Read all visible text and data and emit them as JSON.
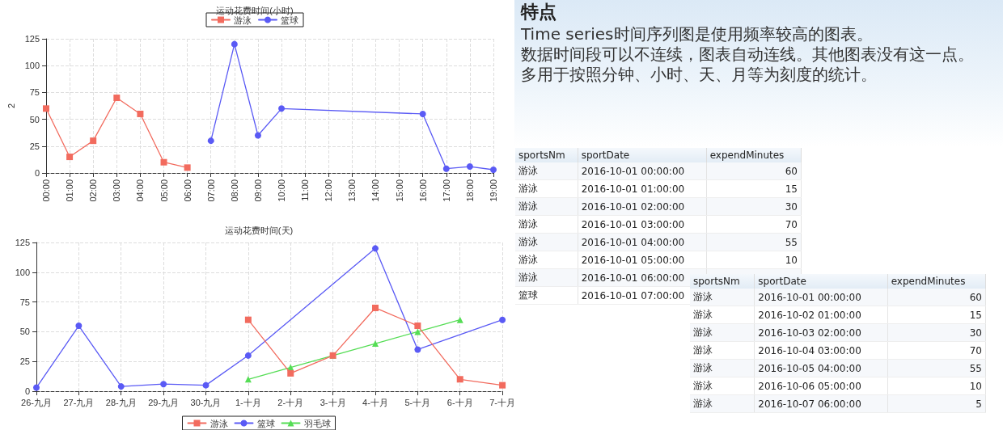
{
  "chart_data": [
    {
      "type": "line",
      "title": "运动花费时间(小时)",
      "ylabel": "2",
      "categories": [
        "00:00",
        "01:00",
        "02:00",
        "03:00",
        "04:00",
        "05:00",
        "06:00",
        "07:00",
        "08:00",
        "09:00",
        "10:00",
        "11:00",
        "12:00",
        "13:00",
        "14:00",
        "15:00",
        "16:00",
        "17:00",
        "18:00",
        "19:00"
      ],
      "ylim": [
        0,
        125
      ],
      "yticks": [
        0,
        25,
        50,
        75,
        100,
        125
      ],
      "grid": true,
      "legend": "top",
      "line_style": "solid",
      "series": [
        {
          "name": "游泳",
          "color": "#f26b5e",
          "marker": "square",
          "values": [
            60,
            15,
            30,
            70,
            55,
            10,
            5,
            null,
            null,
            null,
            null,
            null,
            null,
            null,
            null,
            null,
            null,
            null,
            null,
            null
          ]
        },
        {
          "name": "篮球",
          "color": "#5a5af5",
          "marker": "circle",
          "values": [
            null,
            null,
            null,
            null,
            null,
            null,
            null,
            30,
            120,
            35,
            60,
            null,
            null,
            null,
            null,
            null,
            55,
            4,
            6,
            3
          ]
        }
      ]
    },
    {
      "type": "line",
      "title": "运动花费时间(天)",
      "categories": [
        "26-九月",
        "27-九月",
        "28-九月",
        "29-九月",
        "30-九月",
        "1-十月",
        "2-十月",
        "3-十月",
        "4-十月",
        "5-十月",
        "6-十月",
        "7-十月"
      ],
      "ylim": [
        0,
        125
      ],
      "yticks": [
        0,
        25,
        50,
        75,
        100,
        125
      ],
      "grid": true,
      "legend": "bottom",
      "line_style": "solid",
      "series": [
        {
          "name": "游泳",
          "color": "#f26b5e",
          "marker": "square",
          "values": [
            null,
            null,
            null,
            null,
            null,
            60,
            15,
            30,
            70,
            55,
            10,
            5
          ]
        },
        {
          "name": "篮球",
          "color": "#5a5af5",
          "marker": "circle",
          "values": [
            3,
            55,
            4,
            6,
            5,
            30,
            null,
            null,
            120,
            35,
            null,
            60
          ]
        },
        {
          "name": "羽毛球",
          "color": "#55dd55",
          "marker": "triangle",
          "values": [
            null,
            null,
            null,
            null,
            null,
            10,
            20,
            30,
            40,
            50,
            60,
            null
          ]
        }
      ]
    },
    {
      "type": "other",
      "title": "特点",
      "annotations": [
        "Time series时间序列图是使用频率较高的图表。",
        "数据时间段可以不连续，图表自动连线。其他图表没有这一点。",
        "多用于按照分钟、小时、天、月等为刻度的统计。"
      ]
    },
    {
      "type": "other",
      "categories": [
        "sportsNm",
        "sportDate",
        "expendMinutes"
      ],
      "cells": [
        [
          "游泳",
          "2016-10-01 00:00:00",
          "60"
        ],
        [
          "游泳",
          "2016-10-01 01:00:00",
          "15"
        ],
        [
          "游泳",
          "2016-10-01 02:00:00",
          "30"
        ],
        [
          "游泳",
          "2016-10-01 03:00:00",
          "70"
        ],
        [
          "游泳",
          "2016-10-01 04:00:00",
          "55"
        ],
        [
          "游泳",
          "2016-10-01 05:00:00",
          "10"
        ],
        [
          "游泳",
          "2016-10-01 06:00:00",
          null
        ],
        [
          "篮球",
          "2016-10-01 07:00:00",
          null
        ]
      ]
    },
    {
      "type": "other",
      "categories": [
        "sportsNm",
        "sportDate",
        "expendMinutes"
      ],
      "cells": [
        [
          "游泳",
          "2016-10-01 00:00:00",
          "60"
        ],
        [
          "游泳",
          "2016-10-02 01:00:00",
          "15"
        ],
        [
          "游泳",
          "2016-10-03 02:00:00",
          "30"
        ],
        [
          "游泳",
          "2016-10-04 03:00:00",
          "70"
        ],
        [
          "游泳",
          "2016-10-05 04:00:00",
          "55"
        ],
        [
          "游泳",
          "2016-10-06 05:00:00",
          "10"
        ],
        [
          "游泳",
          "2016-10-07 06:00:00",
          "5"
        ]
      ]
    }
  ]
}
